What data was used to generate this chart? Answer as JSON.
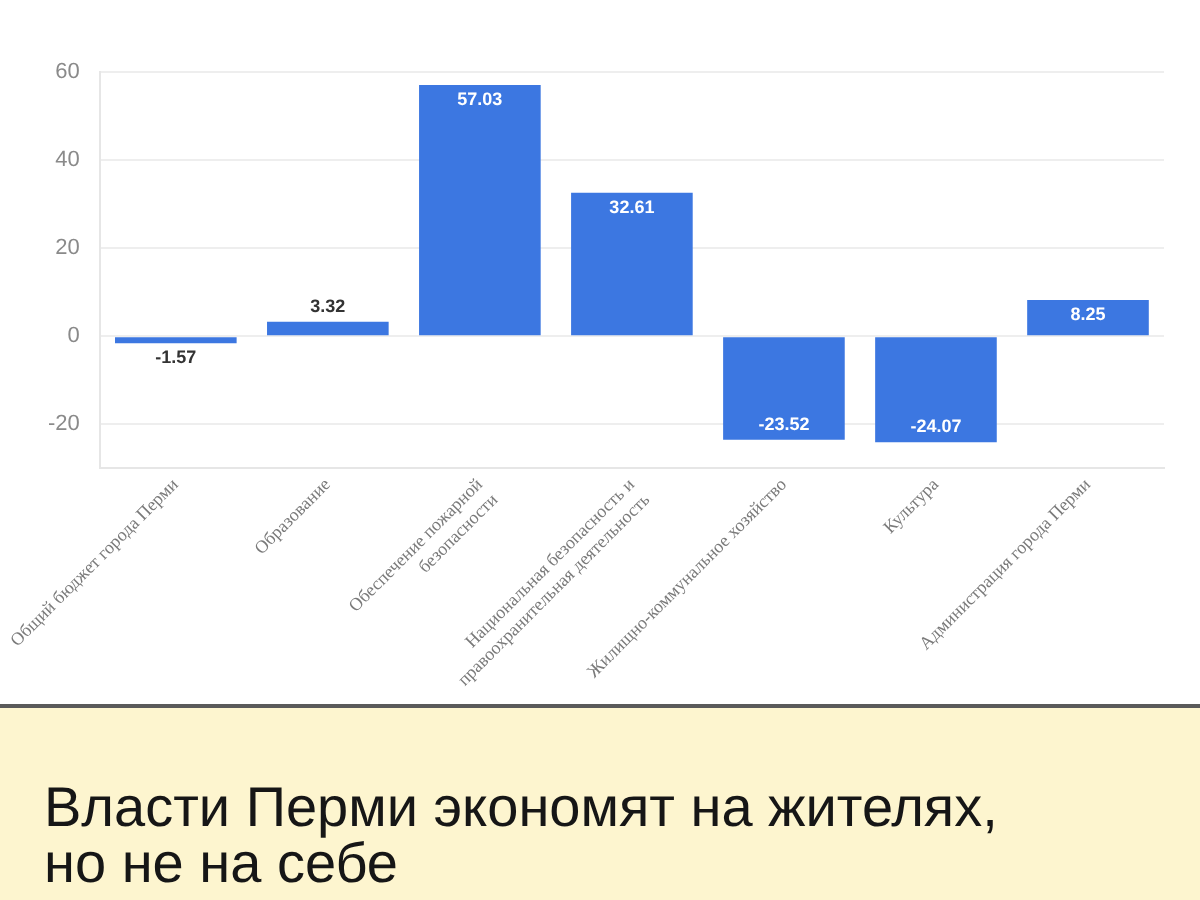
{
  "chart_data": {
    "type": "bar",
    "title": "Власти Перми экономят на жителях, но не на себе",
    "categories": [
      "Общий бюджет города Перми",
      "Образование",
      "Обеспечение пожарной безопасности",
      "Национальная безопасность и правоохранительная деятельность",
      "Жилищно-коммунальное хозяйство",
      "Культура",
      "Администрация города Перми"
    ],
    "values": [
      -1.57,
      3.32,
      57.03,
      32.61,
      -23.52,
      -24.07,
      8.25
    ],
    "color": "#3c77e1",
    "ylim": [
      -30,
      60
    ],
    "yticks": [
      -20,
      0,
      20,
      40,
      60
    ],
    "grid": "y",
    "data_labels": true
  }
}
